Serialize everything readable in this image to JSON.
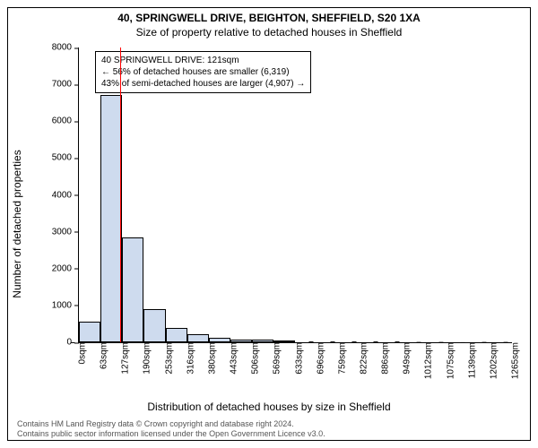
{
  "title_main": "40, SPRINGWELL DRIVE, BEIGHTON, SHEFFIELD, S20 1XA",
  "title_sub": "Size of property relative to detached houses in Sheffield",
  "ylabel": "Number of detached properties",
  "xlabel": "Distribution of detached houses by size in Sheffield",
  "footer_line1": "Contains HM Land Registry data © Crown copyright and database right 2024.",
  "footer_line2": "Contains public sector information licensed under the Open Government Licence v3.0.",
  "chart": {
    "type": "histogram",
    "ylim": [
      0,
      8000
    ],
    "ytick_step": 1000,
    "xtick_labels": [
      "0sqm",
      "63sqm",
      "127sqm",
      "190sqm",
      "253sqm",
      "316sqm",
      "380sqm",
      "443sqm",
      "506sqm",
      "569sqm",
      "633sqm",
      "696sqm",
      "759sqm",
      "822sqm",
      "886sqm",
      "949sqm",
      "1012sqm",
      "1075sqm",
      "1139sqm",
      "1202sqm",
      "1265sqm"
    ],
    "xtick_count": 21,
    "bar_values": [
      550,
      6700,
      2850,
      900,
      400,
      230,
      130,
      80,
      65,
      50,
      0,
      0,
      0,
      0,
      0,
      0,
      0,
      0,
      0,
      0
    ],
    "bar_fill": "#cedbee",
    "bar_border": "#000000",
    "background": "#ffffff",
    "marker_position": 0.095,
    "marker_color": "#ff0000"
  },
  "annotation": {
    "line1": "40 SPRINGWELL DRIVE: 121sqm",
    "line2": "← 56% of detached houses are smaller (6,319)",
    "line3": "43% of semi-detached houses are larger (4,907) →"
  },
  "fonts": {
    "title_size": 12,
    "label_size": 12,
    "tick_size": 10,
    "annotation_size": 10,
    "footer_size": 9
  }
}
